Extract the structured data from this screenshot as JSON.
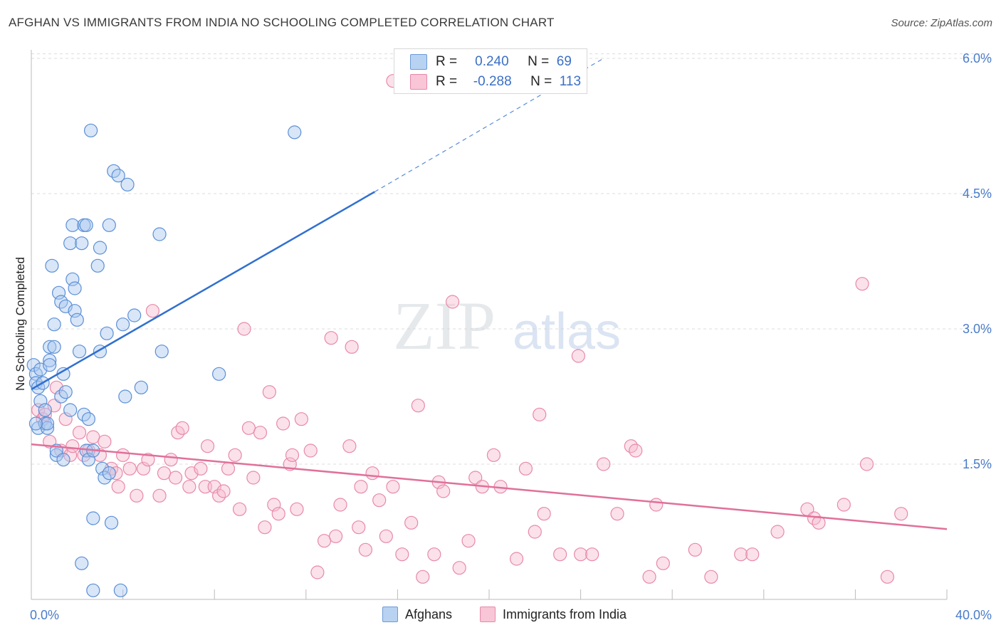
{
  "title": "AFGHAN VS IMMIGRANTS FROM INDIA NO SCHOOLING COMPLETED CORRELATION CHART",
  "source": "Source: ZipAtlas.com",
  "watermark": {
    "zip": "ZIP",
    "atlas": "atlas"
  },
  "legend": {
    "afghans": {
      "r_label": "R =",
      "r_value": "0.240",
      "n_label": "N =",
      "n_value": "69"
    },
    "india": {
      "r_label": "R =",
      "r_value": "-0.288",
      "n_label": "N =",
      "n_value": "113"
    }
  },
  "bottom_legend": {
    "afghans": "Afghans",
    "india": "Immigrants from India"
  },
  "colors": {
    "afghans_fill": "#a9c8f0",
    "afghans_stroke": "#5b8fd6",
    "afghans_line": "#3070d0",
    "india_fill": "#f6bcd0",
    "india_stroke": "#e889a8",
    "india_line": "#e0709a",
    "tick": "#4a7cc9",
    "grid": "#dddddd"
  },
  "chart_data": {
    "type": "scatter",
    "title": "AFGHAN VS IMMIGRANTS FROM INDIA NO SCHOOLING COMPLETED CORRELATION CHART",
    "xlabel": "",
    "ylabel": "No Schooling Completed",
    "xlim": [
      0,
      40
    ],
    "ylim": [
      0,
      6.3
    ],
    "x_tick_labels": [
      "0.0%",
      "40.0%"
    ],
    "y_ticks": [
      1.5,
      3.0,
      4.5,
      6.0
    ],
    "y_tick_labels": [
      "1.5%",
      "3.0%",
      "4.5%",
      "6.0%"
    ],
    "grid": true,
    "legend_position": "top-center",
    "series": [
      {
        "name": "Afghans",
        "r": 0.24,
        "n": 69,
        "trend": {
          "x": [
            0,
            15
          ],
          "y": [
            2.33,
            4.52
          ],
          "dashed_extension_to": [
            25,
            6.0
          ]
        },
        "points": [
          [
            0.1,
            2.6
          ],
          [
            0.2,
            2.5
          ],
          [
            0.2,
            2.4
          ],
          [
            0.3,
            2.35
          ],
          [
            0.3,
            1.9
          ],
          [
            0.4,
            2.2
          ],
          [
            0.4,
            2.55
          ],
          [
            0.5,
            2.4
          ],
          [
            0.6,
            2.1
          ],
          [
            0.6,
            1.95
          ],
          [
            0.7,
            1.9
          ],
          [
            0.7,
            1.95
          ],
          [
            0.8,
            2.65
          ],
          [
            0.8,
            2.8
          ],
          [
            0.8,
            2.6
          ],
          [
            0.9,
            3.7
          ],
          [
            1.0,
            2.8
          ],
          [
            1.0,
            3.05
          ],
          [
            1.1,
            1.6
          ],
          [
            1.1,
            1.65
          ],
          [
            1.2,
            3.4
          ],
          [
            1.3,
            3.3
          ],
          [
            1.3,
            2.25
          ],
          [
            1.4,
            2.5
          ],
          [
            1.4,
            1.55
          ],
          [
            1.5,
            3.25
          ],
          [
            1.5,
            2.3
          ],
          [
            1.7,
            3.95
          ],
          [
            1.7,
            2.1
          ],
          [
            1.8,
            4.15
          ],
          [
            1.8,
            3.55
          ],
          [
            1.9,
            3.45
          ],
          [
            1.9,
            3.2
          ],
          [
            2.0,
            3.1
          ],
          [
            2.1,
            2.75
          ],
          [
            2.2,
            0.4
          ],
          [
            2.2,
            3.95
          ],
          [
            2.3,
            4.15
          ],
          [
            2.3,
            2.05
          ],
          [
            2.4,
            1.65
          ],
          [
            2.4,
            4.15
          ],
          [
            2.5,
            2.0
          ],
          [
            2.5,
            1.55
          ],
          [
            2.6,
            5.2
          ],
          [
            2.7,
            1.65
          ],
          [
            2.7,
            0.9
          ],
          [
            2.7,
            0.1
          ],
          [
            2.9,
            3.7
          ],
          [
            3.0,
            3.9
          ],
          [
            3.0,
            2.75
          ],
          [
            3.1,
            1.45
          ],
          [
            3.2,
            1.35
          ],
          [
            3.3,
            2.95
          ],
          [
            3.4,
            4.15
          ],
          [
            3.4,
            1.4
          ],
          [
            3.5,
            0.85
          ],
          [
            3.6,
            4.75
          ],
          [
            3.8,
            4.7
          ],
          [
            3.9,
            0.1
          ],
          [
            4.0,
            3.05
          ],
          [
            4.1,
            2.25
          ],
          [
            4.2,
            4.6
          ],
          [
            4.5,
            3.15
          ],
          [
            4.8,
            2.35
          ],
          [
            5.6,
            4.05
          ],
          [
            5.7,
            2.75
          ],
          [
            8.2,
            2.5
          ],
          [
            11.5,
            5.18
          ],
          [
            0.2,
            1.95
          ]
        ]
      },
      {
        "name": "Immigrants from India",
        "r": -0.288,
        "n": 113,
        "trend": {
          "x": [
            0,
            40
          ],
          "y": [
            1.72,
            0.78
          ]
        },
        "points": [
          [
            0.3,
            2.1
          ],
          [
            0.5,
            2.0
          ],
          [
            0.6,
            2.05
          ],
          [
            0.8,
            1.75
          ],
          [
            1.0,
            2.15
          ],
          [
            1.1,
            2.35
          ],
          [
            1.3,
            1.65
          ],
          [
            1.5,
            2.0
          ],
          [
            1.7,
            1.6
          ],
          [
            1.8,
            1.7
          ],
          [
            2.1,
            1.85
          ],
          [
            2.3,
            1.6
          ],
          [
            2.5,
            1.65
          ],
          [
            2.7,
            1.8
          ],
          [
            3.0,
            1.6
          ],
          [
            3.2,
            1.75
          ],
          [
            3.5,
            1.45
          ],
          [
            3.7,
            1.4
          ],
          [
            3.8,
            1.25
          ],
          [
            4.0,
            1.6
          ],
          [
            4.3,
            1.45
          ],
          [
            4.6,
            1.15
          ],
          [
            4.9,
            1.45
          ],
          [
            5.1,
            1.55
          ],
          [
            5.3,
            3.2
          ],
          [
            5.6,
            1.15
          ],
          [
            5.8,
            1.4
          ],
          [
            6.1,
            1.55
          ],
          [
            6.3,
            1.35
          ],
          [
            6.4,
            1.85
          ],
          [
            6.6,
            1.9
          ],
          [
            6.9,
            1.25
          ],
          [
            7.0,
            1.4
          ],
          [
            7.4,
            1.45
          ],
          [
            7.6,
            1.25
          ],
          [
            7.7,
            1.7
          ],
          [
            8.0,
            1.25
          ],
          [
            8.2,
            1.15
          ],
          [
            8.4,
            1.2
          ],
          [
            8.6,
            1.45
          ],
          [
            8.9,
            1.6
          ],
          [
            9.1,
            1.0
          ],
          [
            9.3,
            3.0
          ],
          [
            9.5,
            1.9
          ],
          [
            9.7,
            1.35
          ],
          [
            10.0,
            1.85
          ],
          [
            10.2,
            0.8
          ],
          [
            10.4,
            2.3
          ],
          [
            10.6,
            1.05
          ],
          [
            10.8,
            0.95
          ],
          [
            11.0,
            1.95
          ],
          [
            11.3,
            1.5
          ],
          [
            11.4,
            1.6
          ],
          [
            11.6,
            1.0
          ],
          [
            11.8,
            2.0
          ],
          [
            12.2,
            1.65
          ],
          [
            12.5,
            0.3
          ],
          [
            12.8,
            0.65
          ],
          [
            13.1,
            2.9
          ],
          [
            13.3,
            0.7
          ],
          [
            13.5,
            1.05
          ],
          [
            13.9,
            1.7
          ],
          [
            14.0,
            2.8
          ],
          [
            14.3,
            0.8
          ],
          [
            14.4,
            1.25
          ],
          [
            14.6,
            0.55
          ],
          [
            14.9,
            1.4
          ],
          [
            15.2,
            1.1
          ],
          [
            15.5,
            0.7
          ],
          [
            15.8,
            1.25
          ],
          [
            16.2,
            0.5
          ],
          [
            16.6,
            0.85
          ],
          [
            16.9,
            2.15
          ],
          [
            17.1,
            0.25
          ],
          [
            17.6,
            0.5
          ],
          [
            17.8,
            1.3
          ],
          [
            18.0,
            1.2
          ],
          [
            18.4,
            3.3
          ],
          [
            18.7,
            0.35
          ],
          [
            19.1,
            0.65
          ],
          [
            19.4,
            1.35
          ],
          [
            19.7,
            1.25
          ],
          [
            20.2,
            1.6
          ],
          [
            20.5,
            1.25
          ],
          [
            21.2,
            0.45
          ],
          [
            21.6,
            1.45
          ],
          [
            22.0,
            0.75
          ],
          [
            22.2,
            2.05
          ],
          [
            22.4,
            0.95
          ],
          [
            23.1,
            0.5
          ],
          [
            23.9,
            2.7
          ],
          [
            24.0,
            0.5
          ],
          [
            24.5,
            0.5
          ],
          [
            25.0,
            1.5
          ],
          [
            25.6,
            0.95
          ],
          [
            26.2,
            1.7
          ],
          [
            26.4,
            1.65
          ],
          [
            27.0,
            0.25
          ],
          [
            27.6,
            0.4
          ],
          [
            27.3,
            1.05
          ],
          [
            29.0,
            0.55
          ],
          [
            29.7,
            0.25
          ],
          [
            31.0,
            0.5
          ],
          [
            31.5,
            0.5
          ],
          [
            32.6,
            0.75
          ],
          [
            33.9,
            1.0
          ],
          [
            34.2,
            0.9
          ],
          [
            34.4,
            0.85
          ],
          [
            35.5,
            1.05
          ],
          [
            36.3,
            3.5
          ],
          [
            36.5,
            1.5
          ],
          [
            37.4,
            0.25
          ],
          [
            38.0,
            0.95
          ]
        ]
      }
    ],
    "special_points": {
      "india_high_outlier": [
        15.8,
        5.75
      ]
    }
  }
}
